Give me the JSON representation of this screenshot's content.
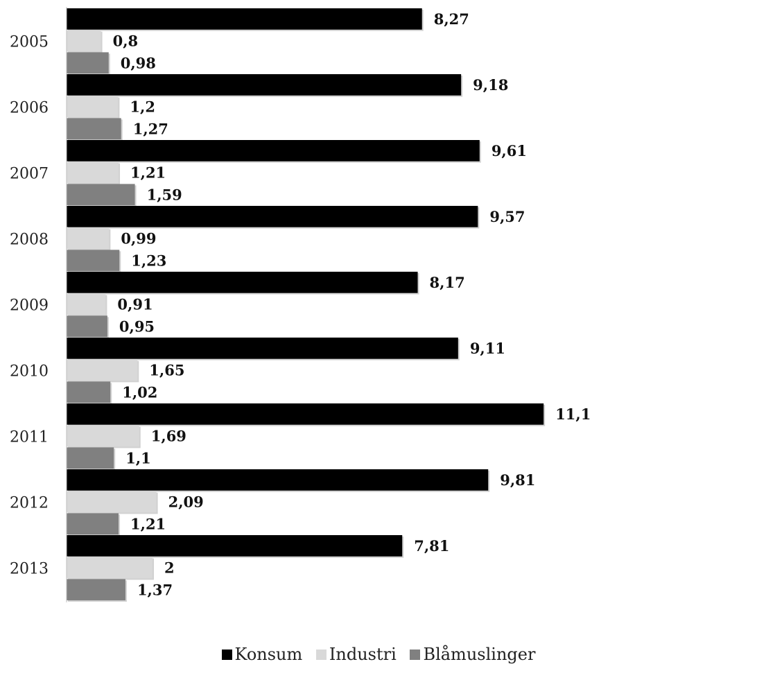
{
  "chart_data": {
    "type": "bar",
    "orientation": "horizontal",
    "title": "",
    "xlabel": "",
    "ylabel": "",
    "categories": [
      "2005",
      "2006",
      "2007",
      "2008",
      "2009",
      "2010",
      "2011",
      "2012",
      "2013"
    ],
    "series": [
      {
        "name": "Konsum",
        "color": "#000000",
        "values": [
          8.27,
          9.18,
          9.61,
          9.57,
          8.17,
          9.11,
          11.1,
          9.81,
          7.81
        ],
        "labels": [
          "8,27",
          "9,18",
          "9,61",
          "9,57",
          "8,17",
          "9,11",
          "11,1",
          "9,81",
          "7,81"
        ]
      },
      {
        "name": "Industri",
        "color": "#d9d9d9",
        "values": [
          0.8,
          1.2,
          1.21,
          0.99,
          0.91,
          1.65,
          1.69,
          2.09,
          2
        ],
        "labels": [
          "0,8",
          "1,2",
          "1,21",
          "0,99",
          "0,91",
          "1,65",
          "1,69",
          "2,09",
          "2"
        ]
      },
      {
        "name": "Blåmuslinger",
        "color": "#808080",
        "values": [
          0.98,
          1.27,
          1.59,
          1.23,
          0.95,
          1.02,
          1.1,
          1.21,
          1.37
        ],
        "labels": [
          "0,98",
          "1,27",
          "1,59",
          "1,23",
          "0,95",
          "1,02",
          "1,1",
          "1,21",
          "1,37"
        ]
      }
    ],
    "xlim": [
      0,
      11.1
    ],
    "grid": false,
    "legend_position": "bottom"
  }
}
